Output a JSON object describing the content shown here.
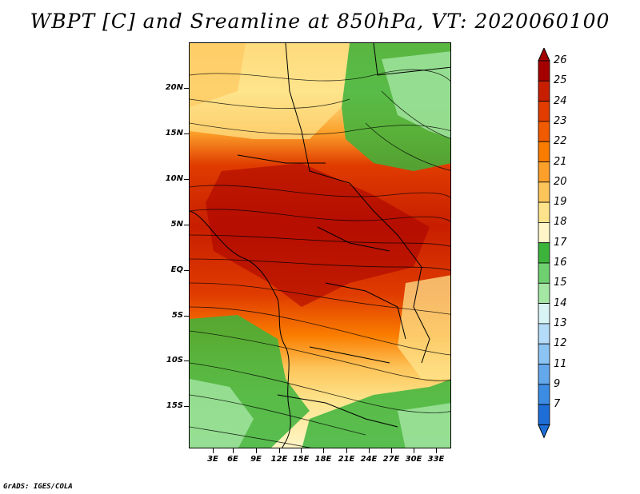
{
  "title": "WBPT [C] and Sreamline at 850hPa, VT: 2020060100",
  "footer": "GrADS: IGES/COLA",
  "lat_labels": [
    "20N",
    "15N",
    "10N",
    "5N",
    "EQ",
    "5S",
    "10S",
    "15S"
  ],
  "lon_labels": [
    "3E",
    "6E",
    "9E",
    "12E",
    "15E",
    "18E",
    "21E",
    "24E",
    "27E",
    "30E",
    "33E"
  ],
  "colorbar": {
    "levels": [
      "26",
      "25",
      "24",
      "23",
      "22",
      "21",
      "20",
      "19",
      "18",
      "17",
      "16",
      "15",
      "14",
      "13",
      "12",
      "11",
      "9",
      "7"
    ],
    "colors": [
      "#a50000",
      "#c81e00",
      "#e03c00",
      "#f05a00",
      "#fa7d00",
      "#fca02a",
      "#fdc55a",
      "#fde48c",
      "#fef6c8",
      "#3cb43c",
      "#6fd06f",
      "#a4e6a4",
      "#d8f4f4",
      "#b4dcf8",
      "#8cc4f4",
      "#64a8ec",
      "#3c8ce4",
      "#1e6ed8"
    ]
  },
  "map": {
    "variable": "Wet-bulb potential temperature",
    "units": "C",
    "level": "850hPa",
    "valid_time": "2020060100"
  }
}
